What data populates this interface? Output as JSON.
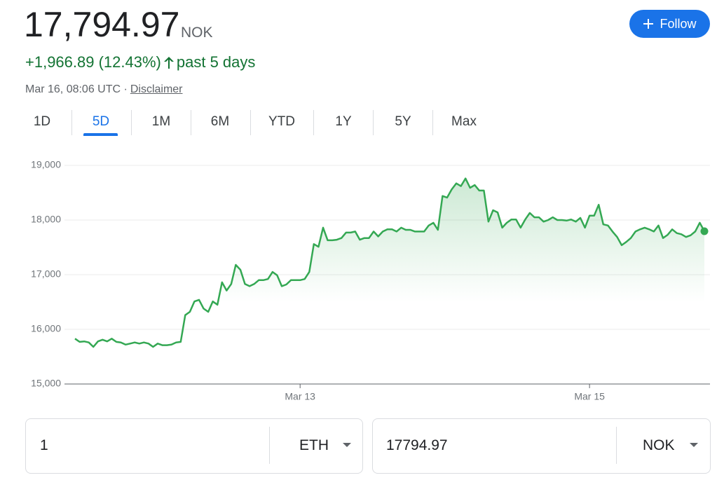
{
  "header": {
    "price": "17,794.97",
    "currency": "NOK",
    "change": "+1,966.89 (12.43%)",
    "period": "past 5 days",
    "timestamp": "Mar 16, 08:06 UTC ·",
    "disclaimer": "Disclaimer",
    "follow": "Follow"
  },
  "tabs": [
    "1D",
    "5D",
    "1M",
    "6M",
    "YTD",
    "1Y",
    "5Y",
    "Max"
  ],
  "converter": {
    "from_amount": "1",
    "from_currency": "ETH",
    "to_amount": "17794.97",
    "to_currency": "NOK"
  },
  "chart_data": {
    "type": "line",
    "color": "#34a853",
    "grid": true,
    "ylim": [
      15000,
      19000
    ],
    "yticks": [
      {
        "value": 15000,
        "label": "15,000"
      },
      {
        "value": 16000,
        "label": "16,000"
      },
      {
        "value": 17000,
        "label": "17,000"
      },
      {
        "value": 18000,
        "label": "18,000"
      },
      {
        "value": 19000,
        "label": "19,000"
      }
    ],
    "categories": [
      null,
      null,
      null,
      null,
      null,
      null,
      null,
      null,
      null,
      null,
      null,
      null,
      null,
      null,
      null,
      null,
      null,
      null,
      null,
      null,
      null,
      null,
      null,
      null,
      null,
      null,
      null,
      null,
      null,
      null,
      null,
      null,
      null,
      null,
      null,
      null,
      null,
      null,
      null,
      null,
      null,
      null,
      null,
      null,
      null,
      null,
      null,
      null,
      null,
      "Mar 13",
      null,
      null,
      null,
      null,
      null,
      null,
      null,
      null,
      null,
      null,
      null,
      null,
      null,
      null,
      null,
      null,
      null,
      null,
      null,
      null,
      null,
      null,
      null,
      null,
      null,
      null,
      null,
      null,
      null,
      null,
      null,
      null,
      null,
      null,
      null,
      null,
      null,
      null,
      null,
      null,
      null,
      null,
      null,
      null,
      null,
      null,
      null,
      null,
      null,
      null,
      null,
      null,
      null,
      null,
      null,
      null,
      null,
      null,
      null,
      null,
      null,
      null,
      "Mar 15",
      null,
      null,
      null,
      null,
      null,
      null,
      null,
      null,
      null,
      null,
      null,
      null,
      null,
      null,
      null,
      null,
      null,
      null,
      null,
      null,
      null,
      null,
      null,
      null,
      null
    ],
    "values": [
      15830,
      15770,
      15780,
      15760,
      15680,
      15780,
      15810,
      15780,
      15830,
      15770,
      15760,
      15720,
      15740,
      15760,
      15740,
      15760,
      15740,
      15680,
      15740,
      15710,
      15710,
      15720,
      15760,
      15770,
      16260,
      16320,
      16510,
      16540,
      16380,
      16320,
      16510,
      16450,
      16860,
      16710,
      16830,
      17180,
      17090,
      16830,
      16790,
      16830,
      16900,
      16900,
      16920,
      17050,
      16990,
      16790,
      16820,
      16900,
      16900,
      16900,
      16920,
      17050,
      17560,
      17510,
      17860,
      17630,
      17630,
      17640,
      17670,
      17770,
      17770,
      17790,
      17640,
      17670,
      17670,
      17790,
      17700,
      17790,
      17830,
      17830,
      17790,
      17860,
      17820,
      17820,
      17790,
      17790,
      17790,
      17900,
      17950,
      17820,
      18440,
      18410,
      18560,
      18670,
      18620,
      18760,
      18590,
      18640,
      18540,
      18540,
      17970,
      18180,
      18140,
      17860,
      17950,
      18010,
      18010,
      17860,
      18010,
      18130,
      18050,
      18050,
      17970,
      18000,
      18050,
      18000,
      18000,
      17990,
      18010,
      17970,
      18040,
      17860,
      18080,
      18080,
      18280,
      17920,
      17900,
      17790,
      17690,
      17540,
      17600,
      17670,
      17790,
      17830,
      17860,
      17830,
      17790,
      17900,
      17670,
      17730,
      17830,
      17760,
      17740,
      17690,
      17720,
      17790,
      17950,
      17794.97
    ]
  }
}
